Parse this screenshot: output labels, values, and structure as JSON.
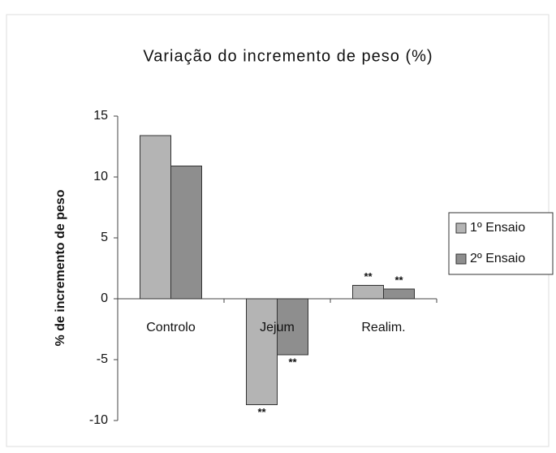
{
  "chart_data": {
    "type": "bar",
    "title": "Variação do incremento de peso (%)",
    "y_label": "% de incremento de peso",
    "categories": [
      "Controlo",
      "Jejum",
      "Realim."
    ],
    "series": [
      {
        "name": "1º Ensaio",
        "color": "#b4b4b4",
        "values": [
          13.4,
          -8.7,
          1.1
        ],
        "annotations": [
          null,
          "**",
          "**"
        ]
      },
      {
        "name": "2º Ensaio",
        "color": "#8e8e8e",
        "values": [
          10.9,
          -4.6,
          0.8
        ],
        "annotations": [
          null,
          "**",
          "**"
        ]
      }
    ],
    "ylim": [
      -10,
      15
    ],
    "yticks": [
      -10,
      -5,
      0,
      5,
      10,
      15
    ],
    "grid": false,
    "legend": "right"
  }
}
